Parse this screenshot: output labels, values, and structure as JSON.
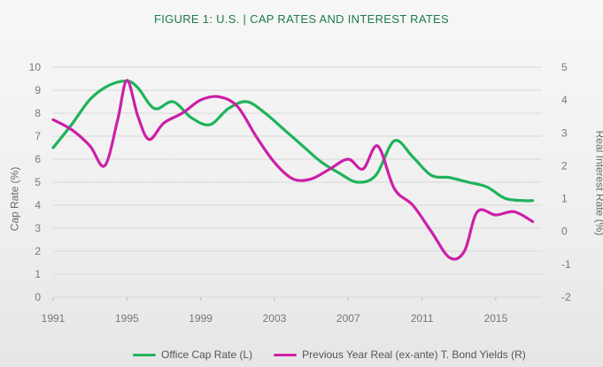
{
  "chart_data": {
    "type": "line",
    "title": "FIGURE 1: U.S. | CAP RATES AND INTEREST RATES",
    "ylabel_left": "Cap Rate (%)",
    "ylabel_right": "Real Interest Rate (%)",
    "x_ticks": [
      "1991",
      "1995",
      "1999",
      "2003",
      "2007",
      "2011",
      "2015"
    ],
    "y_left_ticks": [
      "0",
      "1",
      "2",
      "3",
      "4",
      "5",
      "6",
      "7",
      "8",
      "9",
      "10"
    ],
    "y_right_ticks": [
      "-2",
      "-1",
      "0",
      "1",
      "2",
      "3",
      "4",
      "5"
    ],
    "xlim": [
      1991,
      2017.5
    ],
    "ylim_left": [
      0,
      10
    ],
    "ylim_right": [
      -2,
      5
    ],
    "legend_position": "bottom",
    "series": [
      {
        "name": "Office Cap Rate (L)",
        "axis": "left",
        "color": "#1fb35a",
        "x": [
          1991,
          1992,
          1993,
          1994,
          1995,
          1995.6,
          1996.5,
          1997.5,
          1998.5,
          1999.5,
          2000.5,
          2001.5,
          2002.5,
          2003.5,
          2004.5,
          2005.5,
          2006.5,
          2007.5,
          2008.5,
          2009.5,
          2010.5,
          2011.5,
          2012.5,
          2013.5,
          2014.5,
          2015.5,
          2016.5,
          2017
        ],
        "y": [
          6.5,
          7.5,
          8.6,
          9.2,
          9.4,
          9.1,
          8.2,
          8.5,
          7.8,
          7.5,
          8.2,
          8.5,
          8.0,
          7.3,
          6.6,
          5.9,
          5.4,
          5.0,
          5.3,
          6.8,
          6.1,
          5.3,
          5.2,
          5.0,
          4.8,
          4.3,
          4.2,
          4.2
        ]
      },
      {
        "name": "Previous Year Real (ex-ante) T. Bond Yields (R)",
        "axis": "right",
        "color": "#cc1fa8",
        "x": [
          1991,
          1992,
          1993,
          1993.8,
          1994.5,
          1995,
          1995.6,
          1996.2,
          1997,
          1998,
          1999,
          2000,
          2001,
          2002,
          2003,
          2004,
          2005,
          2006,
          2007,
          2007.8,
          2008.6,
          2009.5,
          2010.5,
          2011.5,
          2012.5,
          2013.3,
          2014,
          2015,
          2016,
          2017
        ],
        "y": [
          3.4,
          3.1,
          2.6,
          2.0,
          3.4,
          4.6,
          3.5,
          2.8,
          3.3,
          3.6,
          4.0,
          4.1,
          3.8,
          2.9,
          2.1,
          1.6,
          1.6,
          1.9,
          2.2,
          1.9,
          2.6,
          1.3,
          0.8,
          0.0,
          -0.8,
          -0.6,
          0.6,
          0.5,
          0.6,
          0.3
        ]
      }
    ]
  }
}
